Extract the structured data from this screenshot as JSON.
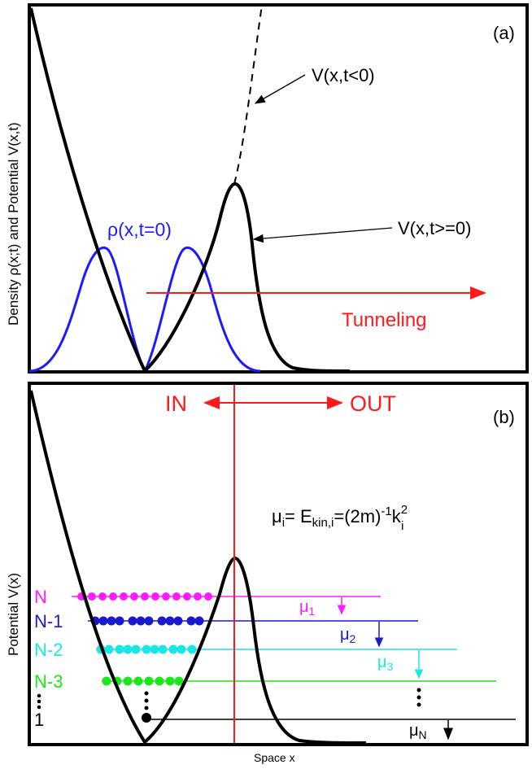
{
  "panel_a": {
    "tag": "(a)",
    "ylabel": "Density ρ(x;t) and Potential V(x,t)",
    "label_v_before": "V(x,t<0)",
    "label_v_after": "V(x,t>=0)",
    "label_density": "ρ(x,t=0)",
    "label_tunneling": "Tunneling",
    "colors": {
      "potential": "#000000",
      "density": "#1a1aff",
      "tunneling": "#ff1a1a"
    }
  },
  "panel_b": {
    "tag": "(b)",
    "ylabel": "Potential V(x)",
    "label_in": "IN",
    "label_out": "OUT",
    "eq_mu": "μ",
    "eq_mu_sub": "i",
    "eq_rhs1": "= E",
    "eq_sub_kin": "kin,i",
    "eq_rhs2": "=(2m)",
    "eq_sup_m1": "-1",
    "eq_k": "k",
    "eq_sup_2": "2",
    "eq_sub_i": "i",
    "levels": [
      {
        "label": "N",
        "mu": "μ",
        "mu_sub": "1",
        "color": "#ff1aff"
      },
      {
        "label": "N-1",
        "mu": "μ",
        "mu_sub": "2",
        "color": "#1a1acc"
      },
      {
        "label": "N-2",
        "mu": "μ",
        "mu_sub": "3",
        "color": "#1ae6e6"
      },
      {
        "label": "N-3",
        "color": "#1ae61a"
      },
      {
        "label": "1",
        "mu": "μ",
        "mu_sub": "N",
        "color": "#000000"
      }
    ],
    "colors": {
      "divider": "#ff1a1a"
    }
  },
  "xlabel": "Space x"
}
